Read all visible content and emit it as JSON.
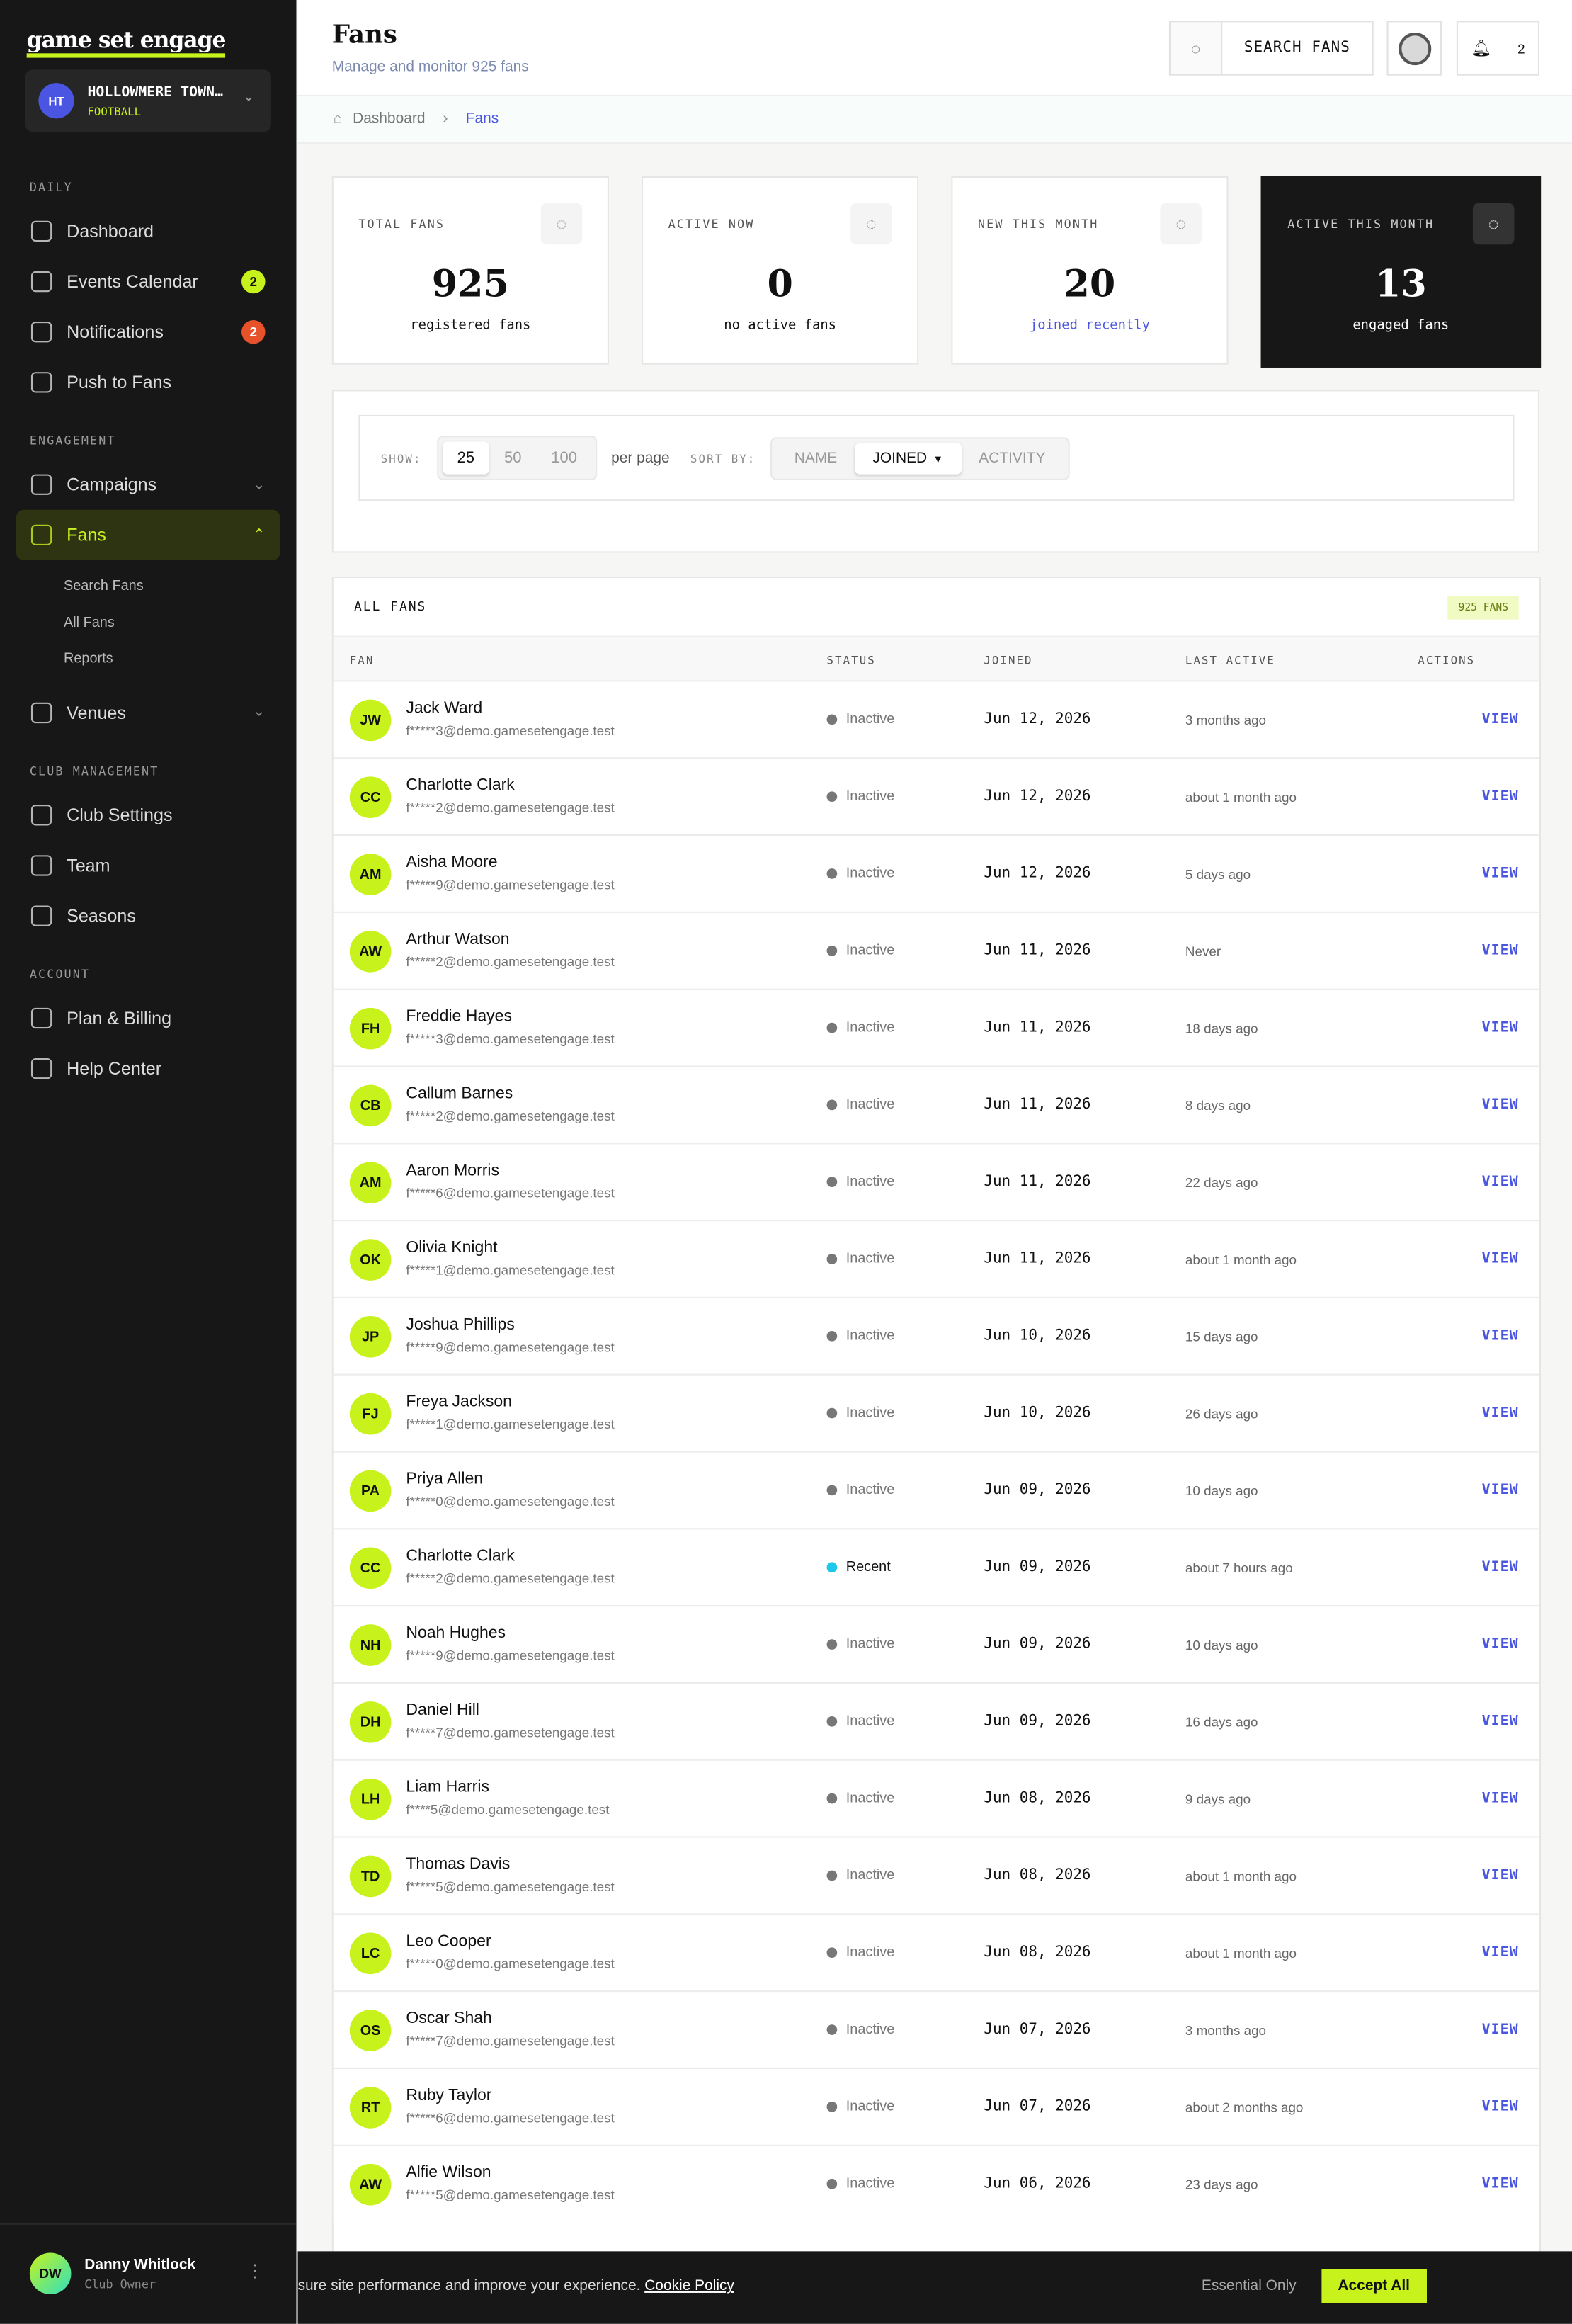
{
  "sidebar": {
    "logo": "game set engage",
    "club": {
      "initials": "HT",
      "name": "HOLLOWMERE TOWN…",
      "sport": "FOOTBALL"
    },
    "sections": [
      {
        "title": "DAILY",
        "items": [
          {
            "label": "Dashboard"
          },
          {
            "label": "Events Calendar",
            "badge": "2"
          },
          {
            "label": "Notifications",
            "badge": "2"
          },
          {
            "label": "Push to Fans"
          }
        ]
      },
      {
        "title": "ENGAGEMENT",
        "items": [
          {
            "label": "Campaigns"
          },
          {
            "label": "Fans",
            "children": [
              "Search Fans",
              "All Fans",
              "Reports"
            ]
          },
          {
            "label": "Venues"
          }
        ]
      },
      {
        "title": "CLUB MANAGEMENT",
        "items": [
          {
            "label": "Club Settings"
          },
          {
            "label": "Team"
          },
          {
            "label": "Seasons"
          }
        ]
      },
      {
        "title": "ACCOUNT",
        "items": [
          {
            "label": "Plan & Billing"
          },
          {
            "label": "Help Center"
          }
        ]
      }
    ],
    "user": {
      "initials": "DW",
      "name": "Danny Whitlock",
      "role": "Club Owner"
    }
  },
  "header": {
    "title": "Fans",
    "subtitle": "Manage and monitor 925 fans",
    "search": "SEARCH FANS",
    "notifications": "2"
  },
  "breadcrumb": [
    "Dashboard",
    "Fans"
  ],
  "stats": [
    {
      "label": "TOTAL FANS",
      "value": "925",
      "note": "registered fans"
    },
    {
      "label": "ACTIVE NOW",
      "value": "0",
      "note": "no active fans"
    },
    {
      "label": "NEW THIS MONTH",
      "value": "20",
      "note": "joined recently"
    },
    {
      "label": "ACTIVE THIS MONTH",
      "value": "13",
      "note": "engaged fans"
    }
  ],
  "controls": {
    "show": "SHOW:",
    "page_sizes": [
      "25",
      "50",
      "100"
    ],
    "per_page": "per page",
    "sort_by": "SORT BY:",
    "sorts": [
      "NAME",
      "JOINED",
      "ACTIVITY"
    ]
  },
  "table": {
    "title": "ALL FANS",
    "count": "925 FANS",
    "columns": [
      "FAN",
      "STATUS",
      "JOINED",
      "LAST ACTIVE",
      "ACTIONS"
    ],
    "action": "VIEW",
    "rows": [
      [
        "JW",
        "Jack Ward",
        "f*****3@demo.gamesetengage.test",
        "Inactive",
        "Jun 12, 2026",
        "3 months ago"
      ],
      [
        "CC",
        "Charlotte Clark",
        "f*****2@demo.gamesetengage.test",
        "Inactive",
        "Jun 12, 2026",
        "about 1 month ago"
      ],
      [
        "AM",
        "Aisha Moore",
        "f*****9@demo.gamesetengage.test",
        "Inactive",
        "Jun 12, 2026",
        "5 days ago"
      ],
      [
        "AW",
        "Arthur Watson",
        "f*****2@demo.gamesetengage.test",
        "Inactive",
        "Jun 11, 2026",
        "Never"
      ],
      [
        "FH",
        "Freddie Hayes",
        "f*****3@demo.gamesetengage.test",
        "Inactive",
        "Jun 11, 2026",
        "18 days ago"
      ],
      [
        "CB",
        "Callum Barnes",
        "f*****2@demo.gamesetengage.test",
        "Inactive",
        "Jun 11, 2026",
        "8 days ago"
      ],
      [
        "AM",
        "Aaron Morris",
        "f*****6@demo.gamesetengage.test",
        "Inactive",
        "Jun 11, 2026",
        "22 days ago"
      ],
      [
        "OK",
        "Olivia Knight",
        "f*****1@demo.gamesetengage.test",
        "Inactive",
        "Jun 11, 2026",
        "about 1 month ago"
      ],
      [
        "JP",
        "Joshua Phillips",
        "f*****9@demo.gamesetengage.test",
        "Inactive",
        "Jun 10, 2026",
        "15 days ago"
      ],
      [
        "FJ",
        "Freya Jackson",
        "f*****1@demo.gamesetengage.test",
        "Inactive",
        "Jun 10, 2026",
        "26 days ago"
      ],
      [
        "PA",
        "Priya Allen",
        "f*****0@demo.gamesetengage.test",
        "Inactive",
        "Jun 09, 2026",
        "10 days ago"
      ],
      [
        "CC",
        "Charlotte Clark",
        "f*****2@demo.gamesetengage.test",
        "Recent",
        "Jun 09, 2026",
        "about 7 hours ago"
      ],
      [
        "NH",
        "Noah Hughes",
        "f*****9@demo.gamesetengage.test",
        "Inactive",
        "Jun 09, 2026",
        "10 days ago"
      ],
      [
        "DH",
        "Daniel Hill",
        "f*****7@demo.gamesetengage.test",
        "Inactive",
        "Jun 09, 2026",
        "16 days ago"
      ],
      [
        "LH",
        "Liam Harris",
        "f****5@demo.gamesetengage.test",
        "Inactive",
        "Jun 08, 2026",
        "9 days ago"
      ],
      [
        "TD",
        "Thomas Davis",
        "f*****5@demo.gamesetengage.test",
        "Inactive",
        "Jun 08, 2026",
        "about 1 month ago"
      ],
      [
        "LC",
        "Leo Cooper",
        "f*****0@demo.gamesetengage.test",
        "Inactive",
        "Jun 08, 2026",
        "about 1 month ago"
      ],
      [
        "OS",
        "Oscar Shah",
        "f*****7@demo.gamesetengage.test",
        "Inactive",
        "Jun 07, 2026",
        "3 months ago"
      ],
      [
        "RT",
        "Ruby Taylor",
        "f*****6@demo.gamesetengage.test",
        "Inactive",
        "Jun 07, 2026",
        "about 2 months ago"
      ],
      [
        "AW",
        "Alfie Wilson",
        "f*****5@demo.gamesetengage.test",
        "Inactive",
        "Jun 06, 2026",
        "23 days ago"
      ]
    ]
  },
  "cookie": {
    "text": "sure site performance and improve your experience.",
    "link": "Cookie Policy",
    "essential": "Essential Only",
    "accept": "Accept All"
  }
}
